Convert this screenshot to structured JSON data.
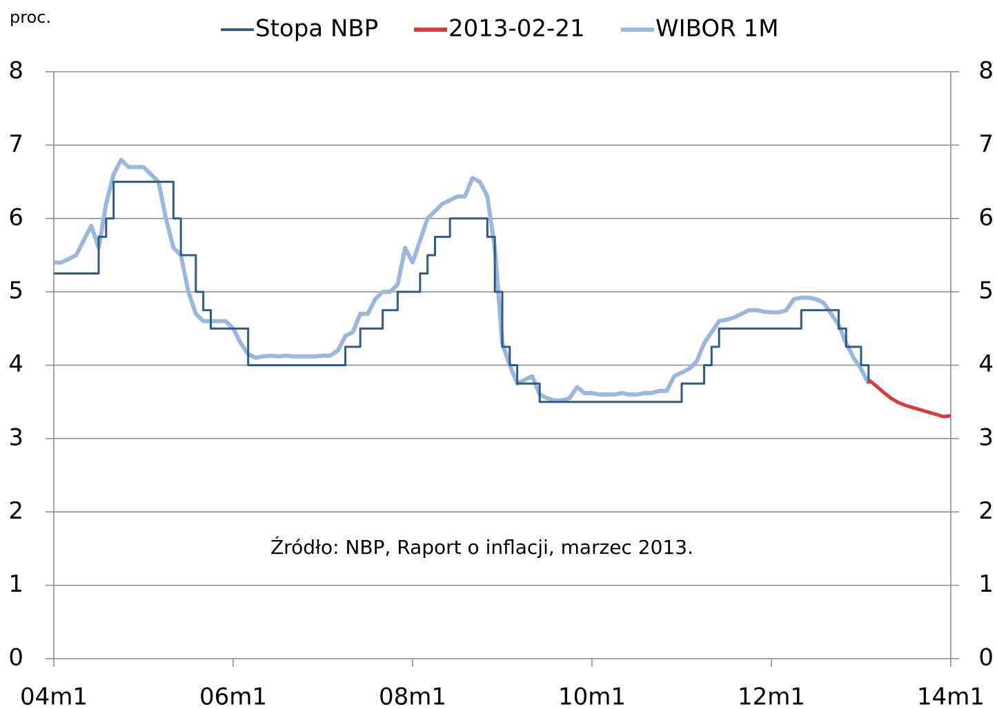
{
  "chart_data": {
    "type": "line",
    "y_label": "proc.",
    "annotation": "Źródło: NBP, Raport o inflacji, marzec 2013.",
    "categories": [
      "04m1",
      null,
      null,
      null,
      null,
      null,
      null,
      null,
      null,
      null,
      null,
      null,
      null,
      null,
      null,
      null,
      null,
      null,
      null,
      null,
      null,
      null,
      null,
      null,
      "06m1",
      null,
      null,
      null,
      null,
      null,
      null,
      null,
      null,
      null,
      null,
      null,
      null,
      null,
      null,
      null,
      null,
      null,
      null,
      null,
      null,
      null,
      null,
      null,
      "08m1",
      null,
      null,
      null,
      null,
      null,
      null,
      null,
      null,
      null,
      null,
      null,
      null,
      null,
      null,
      null,
      null,
      null,
      null,
      null,
      null,
      null,
      null,
      null,
      "10m1",
      null,
      null,
      null,
      null,
      null,
      null,
      null,
      null,
      null,
      null,
      null,
      null,
      null,
      null,
      null,
      null,
      null,
      null,
      null,
      null,
      null,
      null,
      null,
      "12m1",
      null,
      null,
      null,
      null,
      null,
      null,
      null,
      null,
      null,
      null,
      null,
      null,
      null,
      null,
      null,
      null,
      null,
      null,
      null,
      null,
      null,
      null,
      null,
      "14m1"
    ],
    "series": [
      {
        "name": "Stopa NBP",
        "color": "#2e5a8c",
        "step": true,
        "values": [
          5.25,
          5.25,
          5.25,
          5.25,
          5.25,
          5.25,
          5.75,
          6.0,
          6.5,
          6.5,
          6.5,
          6.5,
          6.5,
          6.5,
          6.5,
          6.5,
          6.0,
          5.5,
          5.5,
          5.0,
          4.75,
          4.5,
          4.5,
          4.5,
          4.5,
          4.5,
          4.0,
          4.0,
          4.0,
          4.0,
          4.0,
          4.0,
          4.0,
          4.0,
          4.0,
          4.0,
          4.0,
          4.0,
          4.0,
          4.25,
          4.25,
          4.5,
          4.5,
          4.5,
          4.75,
          4.75,
          5.0,
          5.0,
          5.0,
          5.25,
          5.5,
          5.75,
          5.75,
          6.0,
          6.0,
          6.0,
          6.0,
          6.0,
          5.75,
          5.0,
          4.25,
          4.0,
          3.75,
          3.75,
          3.75,
          3.5,
          3.5,
          3.5,
          3.5,
          3.5,
          3.5,
          3.5,
          3.5,
          3.5,
          3.5,
          3.5,
          3.5,
          3.5,
          3.5,
          3.5,
          3.5,
          3.5,
          3.5,
          3.5,
          3.75,
          3.75,
          3.75,
          4.0,
          4.25,
          4.5,
          4.5,
          4.5,
          4.5,
          4.5,
          4.5,
          4.5,
          4.5,
          4.5,
          4.5,
          4.5,
          4.75,
          4.75,
          4.75,
          4.75,
          4.75,
          4.5,
          4.25,
          4.25,
          4.0,
          3.75,
          null,
          null,
          null,
          null,
          null,
          null,
          null,
          null,
          null,
          null,
          null
        ]
      },
      {
        "name": "2013-02-21",
        "color": "#d93a3a",
        "values": [
          null,
          null,
          null,
          null,
          null,
          null,
          null,
          null,
          null,
          null,
          null,
          null,
          null,
          null,
          null,
          null,
          null,
          null,
          null,
          null,
          null,
          null,
          null,
          null,
          null,
          null,
          null,
          null,
          null,
          null,
          null,
          null,
          null,
          null,
          null,
          null,
          null,
          null,
          null,
          null,
          null,
          null,
          null,
          null,
          null,
          null,
          null,
          null,
          null,
          null,
          null,
          null,
          null,
          null,
          null,
          null,
          null,
          null,
          null,
          null,
          null,
          null,
          null,
          null,
          null,
          null,
          null,
          null,
          null,
          null,
          null,
          null,
          null,
          null,
          null,
          null,
          null,
          null,
          null,
          null,
          null,
          null,
          null,
          null,
          null,
          null,
          null,
          null,
          null,
          null,
          null,
          null,
          null,
          null,
          null,
          null,
          null,
          null,
          null,
          null,
          null,
          null,
          null,
          null,
          null,
          null,
          null,
          null,
          null,
          3.8,
          3.72,
          3.63,
          3.55,
          3.49,
          3.45,
          3.42,
          3.39,
          3.36,
          3.33,
          3.3,
          3.31
        ]
      },
      {
        "name": "WIBOR 1M",
        "color": "#9bb7dd",
        "values": [
          5.4,
          5.4,
          5.45,
          5.5,
          5.7,
          5.9,
          5.6,
          6.2,
          6.6,
          6.8,
          6.7,
          6.7,
          6.7,
          6.6,
          6.5,
          6.0,
          5.6,
          5.5,
          5.0,
          4.7,
          4.6,
          4.6,
          4.6,
          4.6,
          4.5,
          4.3,
          4.15,
          4.1,
          4.12,
          4.13,
          4.12,
          4.13,
          4.12,
          4.12,
          4.12,
          4.12,
          4.13,
          4.13,
          4.2,
          4.4,
          4.45,
          4.7,
          4.7,
          4.9,
          5.0,
          5.0,
          5.1,
          5.6,
          5.4,
          5.7,
          6.0,
          6.1,
          6.2,
          6.25,
          6.3,
          6.3,
          6.55,
          6.5,
          6.3,
          5.6,
          4.3,
          4.0,
          3.75,
          3.8,
          3.85,
          3.6,
          3.55,
          3.52,
          3.52,
          3.55,
          3.7,
          3.62,
          3.62,
          3.6,
          3.6,
          3.6,
          3.62,
          3.6,
          3.6,
          3.62,
          3.62,
          3.65,
          3.65,
          3.85,
          3.9,
          3.95,
          4.05,
          4.3,
          4.45,
          4.6,
          4.62,
          4.65,
          4.7,
          4.75,
          4.75,
          4.73,
          4.72,
          4.72,
          4.75,
          4.9,
          4.92,
          4.92,
          4.9,
          4.85,
          4.7,
          4.55,
          4.3,
          4.1,
          3.95,
          3.75,
          null,
          null,
          null,
          null,
          null,
          null,
          null,
          null,
          null,
          null,
          null
        ]
      }
    ],
    "ylim": [
      0,
      8
    ],
    "yticks": [
      0,
      1,
      2,
      3,
      4,
      5,
      6,
      7,
      8
    ],
    "grid": true
  }
}
